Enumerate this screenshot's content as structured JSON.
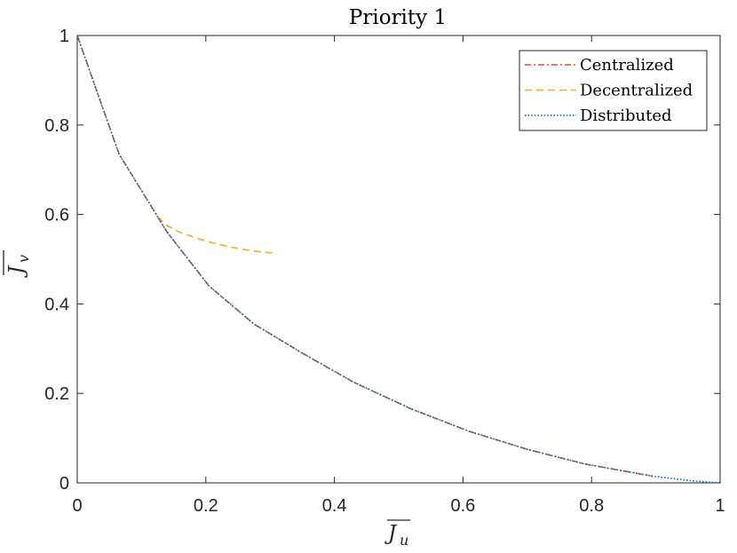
{
  "chart_data": {
    "type": "line",
    "title": "Priority 1",
    "xlabel": "J",
    "xlabel_sub": "u",
    "ylabel": "J",
    "ylabel_sub": "v",
    "xlim": [
      0,
      1
    ],
    "ylim": [
      0,
      1
    ],
    "xticks": [
      "0",
      "0.2",
      "0.4",
      "0.6",
      "0.8",
      "1"
    ],
    "yticks": [
      "0",
      "0.2",
      "0.4",
      "0.6",
      "0.8",
      "1"
    ],
    "grid": false,
    "legend_position": "top-right",
    "series": [
      {
        "name": "Centralized",
        "color": "#D95319",
        "style": "dashdot",
        "x": [
          0,
          0.065,
          0.14,
          0.205,
          0.275,
          0.35,
          0.43,
          0.52,
          0.61,
          0.7,
          0.79,
          0.895
        ],
        "y": [
          1,
          0.735,
          0.56,
          0.44,
          0.355,
          0.29,
          0.225,
          0.165,
          0.115,
          0.075,
          0.042,
          0.015
        ]
      },
      {
        "name": "Decentralized",
        "color": "#EDB120",
        "style": "dashed",
        "x": [
          0.125,
          0.14,
          0.16,
          0.19,
          0.22,
          0.25,
          0.28,
          0.31
        ],
        "y": [
          0.595,
          0.575,
          0.56,
          0.545,
          0.533,
          0.524,
          0.517,
          0.513
        ]
      },
      {
        "name": "Distributed",
        "color": "#0072BD",
        "style": "dotted",
        "x": [
          0,
          0.065,
          0.14,
          0.205,
          0.275,
          0.35,
          0.43,
          0.52,
          0.61,
          0.7,
          0.79,
          0.895,
          0.96,
          1.0
        ],
        "y": [
          1,
          0.735,
          0.56,
          0.44,
          0.355,
          0.29,
          0.225,
          0.165,
          0.115,
          0.075,
          0.042,
          0.015,
          0.004,
          0
        ]
      }
    ]
  }
}
